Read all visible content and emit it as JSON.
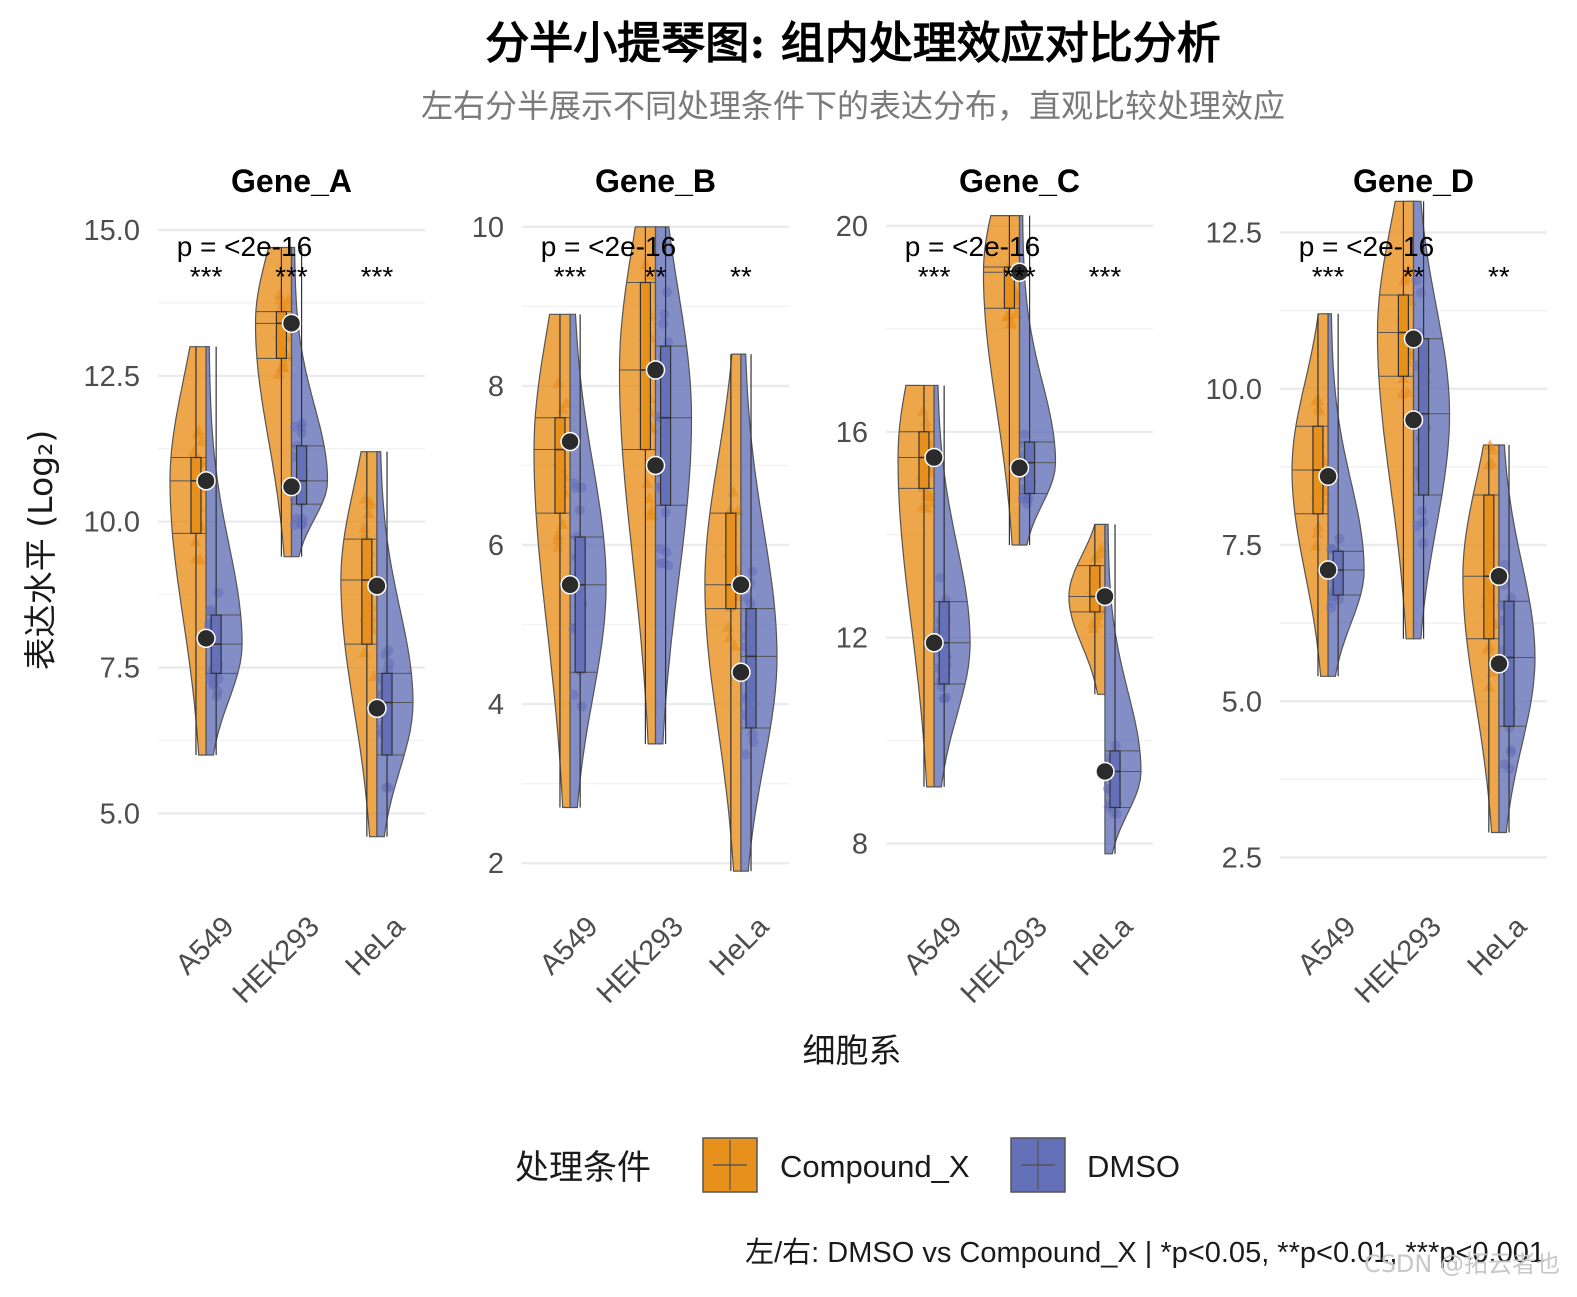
{
  "chart_data": {
    "type": "split-violin",
    "title": "分半小提琴图: 组内处理效应对比分析",
    "subtitle": "左右分半展示不同处理条件下的表达分布，直观比较处理效应",
    "xlabel": "细胞系",
    "ylabel": "表达水平 (Log₂)",
    "caption": "左/右: DMSO vs Compound_X | *p<0.05, **p<0.01, ***p<0.001",
    "legend": {
      "title": "处理条件",
      "placement": "bottom",
      "entries": [
        {
          "name": "Compound_X",
          "color": "#E8901C"
        },
        {
          "name": "DMSO",
          "color": "#6470B8"
        }
      ]
    },
    "categories": [
      "A549",
      "HEK293",
      "HeLa"
    ],
    "facets": [
      {
        "name": "Gene_A",
        "p_label": "p = <2e-16",
        "ylim": [
          3.6,
          15.6
        ],
        "yticks": [
          5.0,
          7.5,
          10.0,
          12.5,
          15.0
        ],
        "ytick_labels": [
          "5.0",
          "7.5",
          "10.0",
          "12.5",
          "15.0"
        ],
        "stars": [
          "***",
          "***",
          "***"
        ],
        "series": [
          {
            "name": "DMSO",
            "mean": [
              8.0,
              10.6,
              6.8
            ],
            "q1": [
              7.4,
              10.3,
              6.0
            ],
            "median": [
              7.9,
              10.7,
              6.9
            ],
            "q3": [
              8.4,
              11.3,
              7.4
            ],
            "min": [
              6.0,
              9.4,
              4.6
            ],
            "max": [
              13.0,
              14.7,
              11.2
            ]
          },
          {
            "name": "Compound_X",
            "mean": [
              10.7,
              13.4,
              8.9
            ],
            "q1": [
              9.8,
              12.8,
              7.9
            ],
            "median": [
              10.7,
              13.4,
              9.0
            ],
            "q3": [
              11.1,
              13.6,
              9.7
            ],
            "min": [
              6.0,
              9.4,
              4.6
            ],
            "max": [
              13.0,
              14.7,
              11.2
            ]
          }
        ]
      },
      {
        "name": "Gene_B",
        "p_label": "p = <2e-16",
        "ylim": [
          1.6,
          10.4
        ],
        "yticks": [
          2,
          4,
          6,
          8,
          10
        ],
        "ytick_labels": [
          "2",
          "4",
          "6",
          "8",
          "10"
        ],
        "stars": [
          "***",
          "**",
          "**"
        ],
        "series": [
          {
            "name": "DMSO",
            "mean": [
              5.5,
              7.0,
              4.4
            ],
            "q1": [
              4.4,
              6.5,
              3.7
            ],
            "median": [
              5.5,
              7.6,
              4.6
            ],
            "q3": [
              6.1,
              8.5,
              5.2
            ],
            "min": [
              2.7,
              3.5,
              1.9
            ],
            "max": [
              8.9,
              10.0,
              8.4
            ]
          },
          {
            "name": "Compound_X",
            "mean": [
              7.3,
              8.2,
              5.5
            ],
            "q1": [
              6.4,
              7.2,
              5.2
            ],
            "median": [
              7.2,
              8.2,
              5.5
            ],
            "q3": [
              7.6,
              9.3,
              6.4
            ],
            "min": [
              2.7,
              3.5,
              1.9
            ],
            "max": [
              8.9,
              10.0,
              8.4
            ]
          }
        ]
      },
      {
        "name": "Gene_C",
        "p_label": "p = <2e-16",
        "ylim": [
          7.0,
          20.6
        ],
        "yticks": [
          8,
          12,
          16,
          20
        ],
        "ytick_labels": [
          "8",
          "12",
          "16",
          "20"
        ],
        "stars": [
          "***",
          "***",
          "***"
        ],
        "series": [
          {
            "name": "DMSO",
            "mean": [
              11.9,
              15.3,
              9.4
            ],
            "q1": [
              11.1,
              14.8,
              8.7
            ],
            "median": [
              11.9,
              15.4,
              9.4
            ],
            "q3": [
              12.7,
              15.8,
              9.8
            ],
            "min": [
              9.1,
              13.8,
              7.8
            ],
            "max": [
              16.9,
              20.2,
              14.2
            ]
          },
          {
            "name": "Compound_X",
            "mean": [
              15.5,
              19.1,
              12.8
            ],
            "q1": [
              14.9,
              18.4,
              12.5
            ],
            "median": [
              15.5,
              19.1,
              12.8
            ],
            "q3": [
              16.0,
              19.2,
              13.4
            ],
            "min": [
              9.1,
              13.8,
              10.9
            ],
            "max": [
              16.9,
              20.2,
              14.2
            ]
          }
        ]
      },
      {
        "name": "Gene_D",
        "p_label": "p = <2e-16",
        "ylim": [
          1.9,
          13.1
        ],
        "yticks": [
          2.5,
          5.0,
          7.5,
          10.0,
          12.5
        ],
        "ytick_labels": [
          "2.5",
          "5.0",
          "7.5",
          "10.0",
          "12.5"
        ],
        "stars": [
          "***",
          "**",
          "**"
        ],
        "series": [
          {
            "name": "DMSO",
            "mean": [
              7.1,
              9.5,
              5.6
            ],
            "q1": [
              6.7,
              8.3,
              4.6
            ],
            "median": [
              7.1,
              9.6,
              5.7
            ],
            "q3": [
              7.4,
              10.8,
              6.6
            ],
            "min": [
              5.4,
              6.0,
              2.9
            ],
            "max": [
              11.2,
              13.0,
              9.1
            ]
          },
          {
            "name": "Compound_X",
            "mean": [
              8.6,
              10.8,
              7.0
            ],
            "q1": [
              8.0,
              10.2,
              6.0
            ],
            "median": [
              8.7,
              10.9,
              7.0
            ],
            "q3": [
              9.4,
              11.5,
              8.3
            ],
            "min": [
              5.4,
              6.0,
              2.9
            ],
            "max": [
              11.2,
              13.0,
              9.1
            ]
          }
        ]
      }
    ]
  },
  "watermark": "CSDN @拓云者也"
}
